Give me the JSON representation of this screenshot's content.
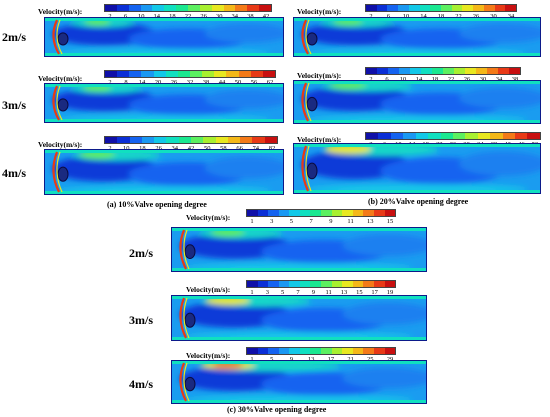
{
  "velocity_label": "Velocity(m/s):",
  "colormap": [
    "#1010a8",
    "#0b2fd6",
    "#1563f0",
    "#1a98f2",
    "#12c8e8",
    "#10e0c0",
    "#1ae890",
    "#5cf060",
    "#a8f030",
    "#e8e820",
    "#f4b818",
    "#f47a18",
    "#e83a16",
    "#c81010"
  ],
  "captions": {
    "a": "(a) 10%Valve opening degree",
    "b": "(b) 20%Valve opening degree",
    "c": "(c) 30%Valve opening degree"
  },
  "rows": [
    {
      "id": "a2",
      "row_label": "2m/s",
      "ticks": [
        "2",
        "6",
        "10",
        "14",
        "18",
        "22",
        "26",
        "30",
        "34",
        "38",
        "42"
      ]
    },
    {
      "id": "a3",
      "row_label": "3m/s",
      "ticks": [
        "2",
        "8",
        "14",
        "20",
        "26",
        "32",
        "38",
        "44",
        "50",
        "56",
        "62"
      ]
    },
    {
      "id": "a4",
      "row_label": "4m/s",
      "ticks": [
        "2",
        "10",
        "18",
        "26",
        "34",
        "42",
        "50",
        "58",
        "66",
        "74",
        "82"
      ]
    },
    {
      "id": "b2",
      "row_label": "",
      "ticks": [
        "2",
        "6",
        "10",
        "14",
        "18",
        "22",
        "26",
        "30",
        "34"
      ]
    },
    {
      "id": "b3",
      "row_label": "",
      "ticks": [
        "2",
        "6",
        "10",
        "14",
        "18",
        "22",
        "26",
        "30",
        "34",
        "38"
      ]
    },
    {
      "id": "b4",
      "row_label": "",
      "ticks": [
        "2",
        "6",
        "10",
        "14",
        "18",
        "22",
        "26",
        "30",
        "34",
        "38",
        "42",
        "46",
        "50"
      ]
    },
    {
      "id": "c2",
      "row_label": "2m/s",
      "ticks": [
        "1",
        "3",
        "5",
        "7",
        "9",
        "11",
        "13",
        "15"
      ]
    },
    {
      "id": "c3",
      "row_label": "3m/s",
      "ticks": [
        "1",
        "3",
        "5",
        "7",
        "9",
        "11",
        "13",
        "15",
        "17",
        "19"
      ]
    },
    {
      "id": "c4",
      "row_label": "4m/s",
      "ticks": [
        "1",
        "5",
        "9",
        "13",
        "17",
        "21",
        "25",
        "29"
      ]
    }
  ]
}
